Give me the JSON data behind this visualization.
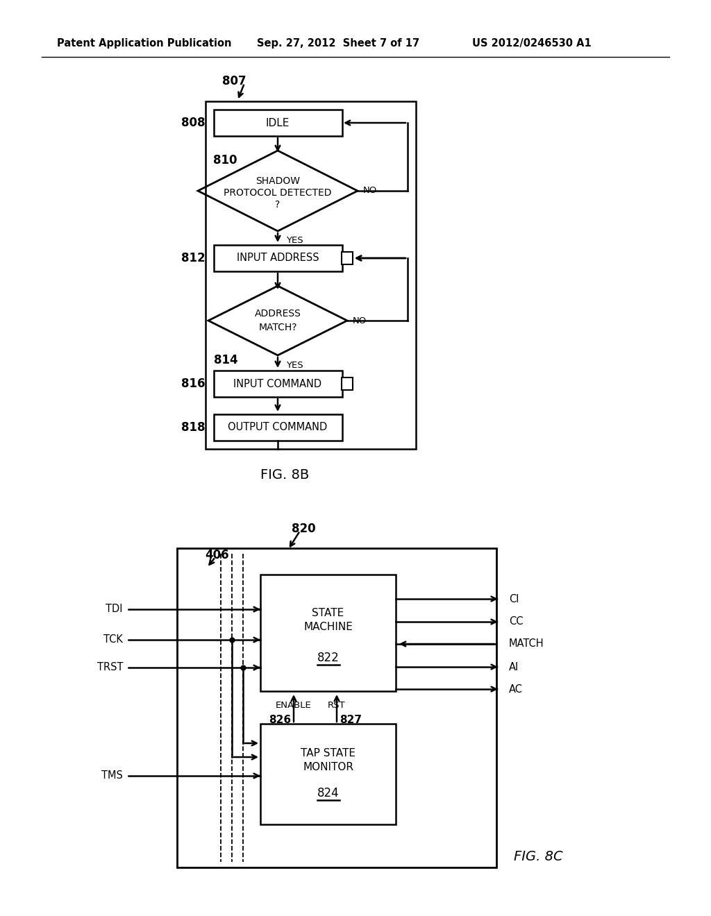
{
  "bg_color": "#ffffff",
  "header_text": "Patent Application Publication",
  "header_date": "Sep. 27, 2012  Sheet 7 of 17",
  "header_patent": "US 2012/0246530 A1",
  "fig8b_label": "FIG. 8B",
  "fig8c_label": "FIG. 8C",
  "flowchart": {
    "label_807": "807",
    "label_808": "808",
    "label_810": "810",
    "label_812": "812",
    "label_814": "814",
    "label_816": "816",
    "label_818": "818",
    "idle_text": "IDLE",
    "shadow_line1": "SHADOW",
    "shadow_line2": "PROTOCOL DETECTED",
    "shadow_line3": "?",
    "input_addr_text": "INPUT ADDRESS",
    "addr_match_line1": "ADDRESS",
    "addr_match_line2": "MATCH?",
    "input_cmd_text": "INPUT COMMAND",
    "output_cmd_text": "OUTPUT COMMAND",
    "yes": "YES",
    "no": "NO"
  },
  "blockdiag": {
    "label_406": "406",
    "label_820": "820",
    "label_822": "822",
    "label_824": "824",
    "label_826": "826",
    "label_827": "827",
    "sm_line1": "STATE",
    "sm_line2": "MACHINE",
    "tsm_line1": "TAP STATE",
    "tsm_line2": "MONITOR",
    "enable_text": "ENABLE",
    "rst_text": "RST",
    "tdi_text": "TDI",
    "tck_text": "TCK",
    "trst_text": "TRST",
    "tms_text": "TMS",
    "out_ci": "CI",
    "out_cc": "CC",
    "out_match": "MATCH",
    "out_ai": "AI",
    "out_ac": "AC"
  }
}
